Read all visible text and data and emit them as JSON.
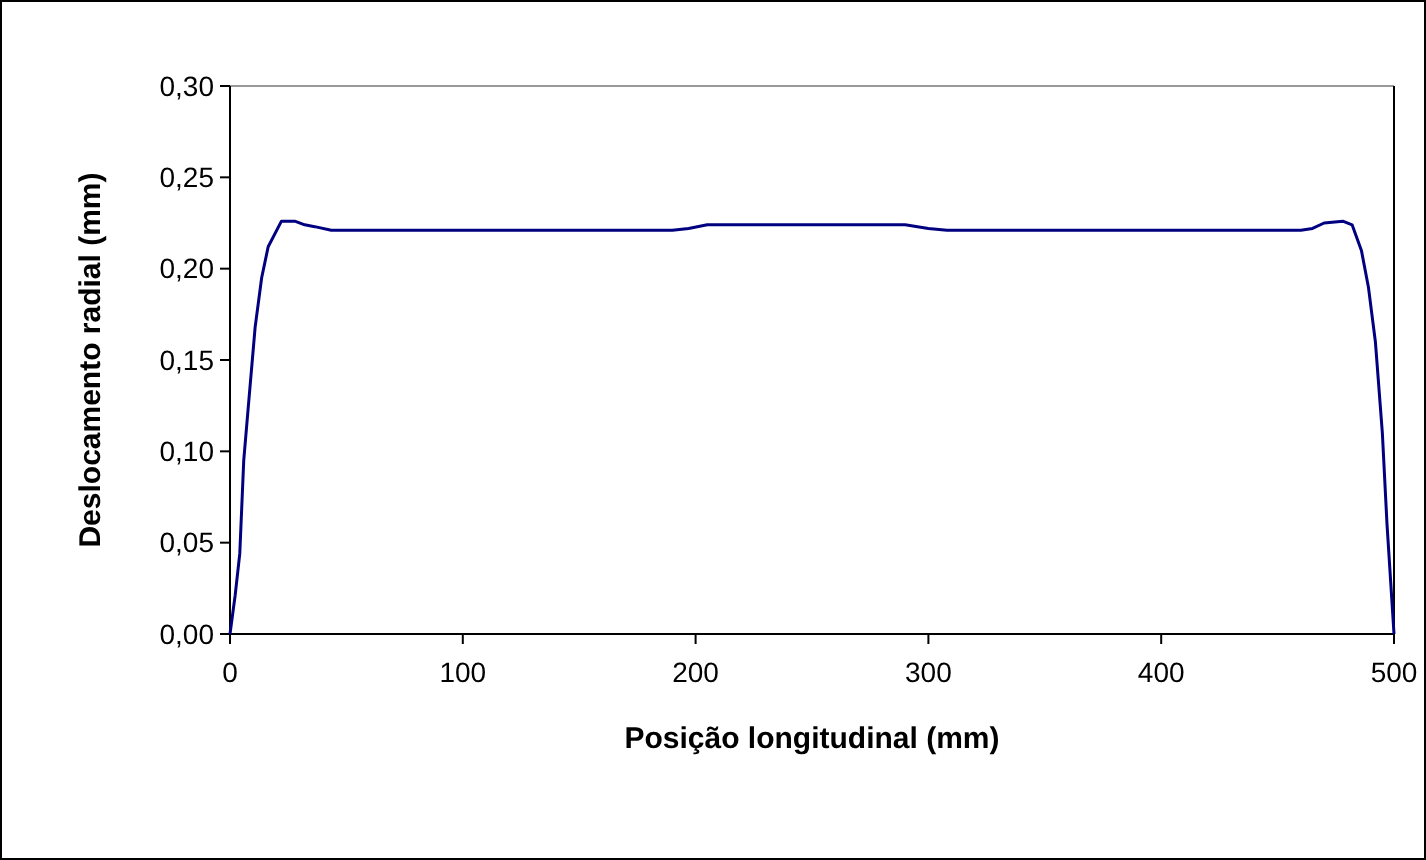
{
  "chart_data": {
    "type": "line",
    "xlabel": "Posição longitudinal (mm)",
    "ylabel": "Deslocamento radial (mm)",
    "xlim": [
      0,
      500
    ],
    "xticks": [
      0,
      100,
      200,
      300,
      400,
      500
    ],
    "ylim": [
      0,
      0.3
    ],
    "yticks": [
      {
        "value": 0,
        "label": "0,00"
      },
      {
        "value": 0.05,
        "label": "0,05"
      },
      {
        "value": 0.1,
        "label": "0,10"
      },
      {
        "value": 0.15,
        "label": "0,15"
      },
      {
        "value": 0.2,
        "label": "0,20"
      },
      {
        "value": 0.25,
        "label": "0,25"
      },
      {
        "value": 0.3,
        "label": "0,30"
      }
    ],
    "grid": false,
    "marker": "none",
    "line_style": "solid",
    "series": [
      {
        "color": "#000080",
        "x": [
          0,
          2.2,
          4.2,
          5.9,
          7.9,
          10.8,
          13.6,
          16.4,
          22.1,
          27.8,
          32.1,
          36.4,
          43.5,
          190,
          197,
          205,
          290,
          300,
          308,
          460,
          465,
          470,
          478,
          482,
          486,
          489,
          492,
          495,
          497,
          499,
          500
        ],
        "values": [
          0,
          0.021,
          0.044,
          0.095,
          0.125,
          0.168,
          0.195,
          0.212,
          0.226,
          0.226,
          0.224,
          0.223,
          0.221,
          0.221,
          0.222,
          0.224,
          0.224,
          0.222,
          0.221,
          0.221,
          0.222,
          0.225,
          0.226,
          0.224,
          0.21,
          0.19,
          0.16,
          0.11,
          0.06,
          0.02,
          0
        ]
      }
    ]
  }
}
